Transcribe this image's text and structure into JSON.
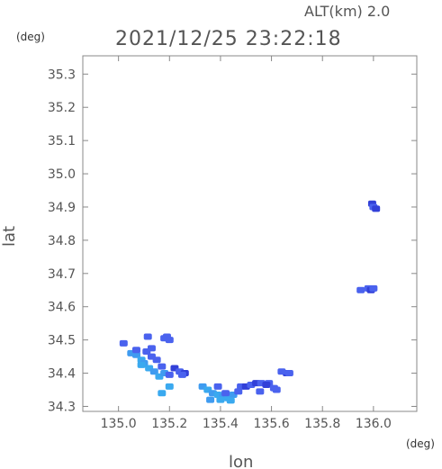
{
  "header": {
    "altitude_label": "ALT(km) 2.0",
    "timestamp": "2021/12/25 23:22:18",
    "y_unit": "(deg)",
    "x_unit": "(deg)"
  },
  "chart_data": {
    "type": "scatter",
    "title": "2021/12/25 23:22:18",
    "xlabel": "lon",
    "ylabel": "lat",
    "xlim": [
      134.86,
      136.17
    ],
    "ylim": [
      34.285,
      35.355
    ],
    "x_ticks": [
      "135.0",
      "135.2",
      "135.4",
      "135.6",
      "135.8",
      "136.0"
    ],
    "x_tick_values": [
      135.0,
      135.2,
      135.4,
      135.6,
      135.8,
      136.0
    ],
    "y_ticks": [
      "34.3",
      "34.4",
      "34.5",
      "34.6",
      "34.7",
      "34.8",
      "34.9",
      "35.0",
      "35.1",
      "35.2",
      "35.3"
    ],
    "y_tick_values": [
      34.3,
      34.4,
      34.5,
      34.6,
      34.7,
      34.8,
      34.9,
      35.0,
      35.1,
      35.2,
      35.3
    ],
    "grid": false,
    "colors": {
      "dominant": "#4a62ee",
      "light": "#3f9bf0",
      "bright": "#3aa9ef",
      "dark": "#3240d8"
    },
    "series": [
      {
        "points": [
          [
            135.02,
            34.49,
            "dominant"
          ],
          [
            135.05,
            34.46,
            "light"
          ],
          [
            135.07,
            34.455,
            "light"
          ],
          [
            135.09,
            34.44,
            "bright"
          ],
          [
            135.1,
            34.43,
            "light"
          ],
          [
            135.12,
            34.415,
            "bright"
          ],
          [
            135.14,
            34.405,
            "light"
          ],
          [
            135.16,
            34.39,
            "bright"
          ],
          [
            135.07,
            34.47,
            "dominant"
          ],
          [
            135.11,
            34.465,
            "dominant"
          ],
          [
            135.13,
            34.45,
            "dominant"
          ],
          [
            135.15,
            34.44,
            "dominant"
          ],
          [
            135.17,
            34.42,
            "dominant"
          ],
          [
            135.18,
            34.4,
            "light"
          ],
          [
            135.13,
            34.475,
            "dominant"
          ],
          [
            135.115,
            34.51,
            "dominant"
          ],
          [
            135.09,
            34.425,
            "bright"
          ],
          [
            135.2,
            34.395,
            "dominant"
          ],
          [
            135.22,
            34.415,
            "dark"
          ],
          [
            135.24,
            34.405,
            "dominant"
          ],
          [
            135.26,
            34.4,
            "dark"
          ],
          [
            135.25,
            34.395,
            "dominant"
          ],
          [
            135.2,
            34.36,
            "bright"
          ],
          [
            135.17,
            34.34,
            "bright"
          ],
          [
            135.18,
            34.505,
            "dominant"
          ],
          [
            135.2,
            34.5,
            "dominant"
          ],
          [
            135.19,
            34.51,
            "dominant"
          ],
          [
            135.33,
            34.36,
            "light"
          ],
          [
            135.35,
            34.35,
            "bright"
          ],
          [
            135.37,
            34.34,
            "light"
          ],
          [
            135.39,
            34.335,
            "bright"
          ],
          [
            135.41,
            34.33,
            "light"
          ],
          [
            135.43,
            34.325,
            "bright"
          ],
          [
            135.45,
            34.335,
            "light"
          ],
          [
            135.47,
            34.345,
            "dominant"
          ],
          [
            135.36,
            34.32,
            "light"
          ],
          [
            135.4,
            34.32,
            "bright"
          ],
          [
            135.44,
            34.318,
            "bright"
          ],
          [
            135.42,
            34.34,
            "dominant"
          ],
          [
            135.39,
            34.36,
            "dominant"
          ],
          [
            135.48,
            34.36,
            "dominant"
          ],
          [
            135.5,
            34.36,
            "dark"
          ],
          [
            135.52,
            34.365,
            "dominant"
          ],
          [
            135.54,
            34.37,
            "dark"
          ],
          [
            135.56,
            34.37,
            "dominant"
          ],
          [
            135.555,
            34.345,
            "dominant"
          ],
          [
            135.59,
            34.37,
            "dominant"
          ],
          [
            135.58,
            34.365,
            "dark"
          ],
          [
            135.61,
            34.355,
            "dominant"
          ],
          [
            135.62,
            34.35,
            "dominant"
          ],
          [
            135.66,
            34.4,
            "dark"
          ],
          [
            135.67,
            34.4,
            "dominant"
          ],
          [
            135.64,
            34.405,
            "dominant"
          ],
          [
            135.995,
            34.91,
            "dark"
          ],
          [
            136.0,
            34.9,
            "dominant"
          ],
          [
            136.01,
            34.895,
            "dark"
          ],
          [
            135.98,
            34.655,
            "dominant"
          ],
          [
            135.99,
            34.65,
            "dark"
          ],
          [
            136.0,
            34.655,
            "dominant"
          ],
          [
            135.95,
            34.65,
            "dominant"
          ]
        ]
      }
    ]
  }
}
